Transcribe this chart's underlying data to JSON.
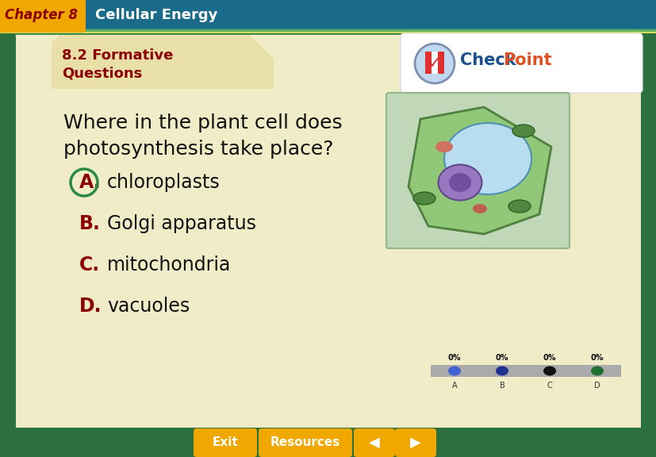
{
  "bg_outer": "#2d7040",
  "bg_header": "#1a6b8a",
  "header_tab_color": "#f0a800",
  "header_tab_text": "Chapter 8",
  "header_tab_text_color": "#8b0000",
  "header_title": "Cellular Energy",
  "header_title_color": "#ffffff",
  "section_title_line1": "8.2 Formative",
  "section_title_line2": "Questions",
  "section_title_color": "#8b0000",
  "main_bg": "#f0ecc8",
  "folder_tab_color": "#e8e0a8",
  "question_text_line1": "Where in the plant cell does",
  "question_text_line2": "photosynthesis take place?",
  "question_color": "#111111",
  "answers": [
    {
      "letter": "A",
      "text": "chloroplasts",
      "circled": true
    },
    {
      "letter": "B",
      "text": "Golgi apparatus",
      "circled": false
    },
    {
      "letter": "C",
      "text": "mitochondria",
      "circled": false
    },
    {
      "letter": "D",
      "text": "vacuoles",
      "circled": false
    }
  ],
  "answer_letter_color": "#8b0000",
  "answer_text_color": "#111111",
  "circle_color": "#2a8a40",
  "poll_labels": [
    "0%",
    "0%",
    "0%",
    "0%"
  ],
  "poll_dot_colors": [
    "#4060d0",
    "#203090",
    "#111111",
    "#207030"
  ],
  "poll_sub_letters": [
    "A",
    "B",
    "C",
    "D"
  ],
  "bottom_bar_color": "#2d7040",
  "button_color": "#f0a800",
  "button_text_color": "#ffffff",
  "checkpoint_check_color": "#1a5090",
  "checkpoint_point_color": "#e05020"
}
